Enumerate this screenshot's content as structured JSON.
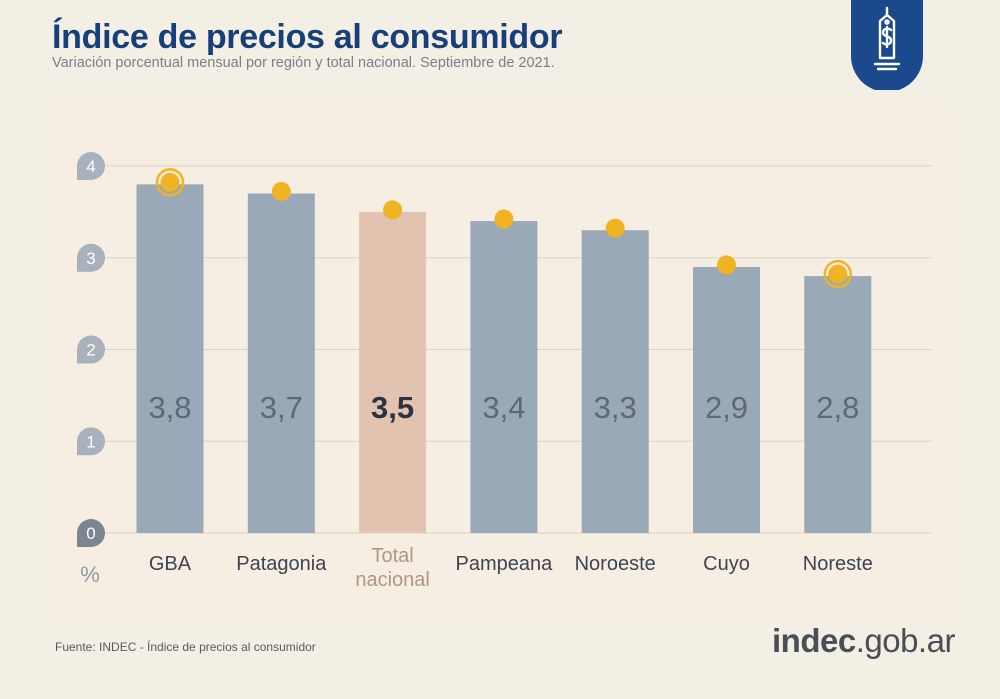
{
  "title": "Índice de precios al consumidor",
  "subtitle": "Variación porcentual mensual por región y total nacional. Septiembre de 2021.",
  "source": "Fuente: INDEC - Índice de precios al consumidor",
  "brand": {
    "main": "indec",
    "suffix": ".gob.ar"
  },
  "badge_icon": "price-tag-dollar-icon",
  "colors": {
    "title": "#173f7a",
    "bar": "#9aa9b8",
    "highlight_bar": "#e2c3b0",
    "dot": "#f0b323",
    "tick_bubble": "#a9b1bc",
    "zero_bubble": "#7d8590",
    "badge": "#1a4a8c"
  },
  "chart_data": {
    "type": "bar",
    "title": "Índice de precios al consumidor",
    "ylabel": "%",
    "ylim": [
      0,
      4
    ],
    "yticks": [
      0,
      1,
      2,
      3,
      4
    ],
    "grid": true,
    "categories": [
      "GBA",
      "Patagonia",
      "Total nacional",
      "Pampeana",
      "Noroeste",
      "Cuyo",
      "Noreste"
    ],
    "values": [
      3.8,
      3.7,
      3.5,
      3.4,
      3.3,
      2.9,
      2.8
    ],
    "value_labels": [
      "3,8",
      "3,7",
      "3,5",
      "3,4",
      "3,3",
      "2,9",
      "2,8"
    ],
    "highlight": "Total nacional",
    "ringed_markers": [
      "GBA",
      "Noreste"
    ]
  }
}
